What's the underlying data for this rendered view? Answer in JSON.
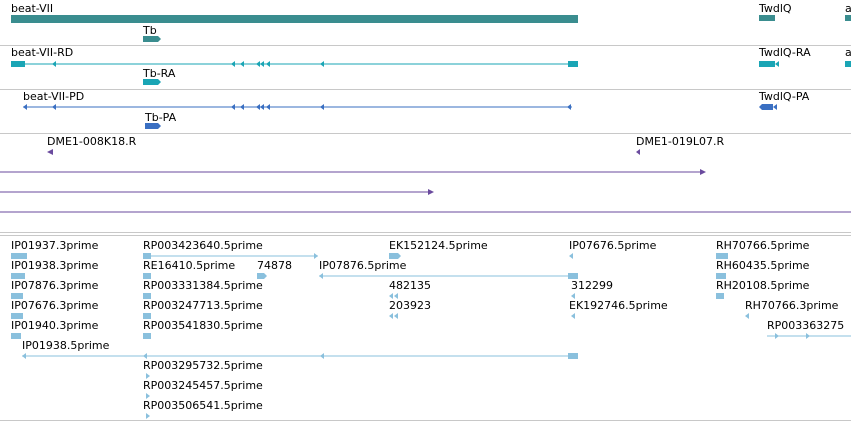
{
  "colors": {
    "gene": "#3a8d8f",
    "rna": "#1aa5b5",
    "protein": "#3a6fc2",
    "clone": "#6a4a9e",
    "est": "#8ac0dd",
    "separator": "#c8c8c8"
  },
  "gene_track": {
    "labels": [
      "beat-VII",
      "Tb",
      "TwdlQ",
      "a"
    ]
  },
  "transcript_track": {
    "labels": [
      "beat-VII-RD",
      "Tb-RA",
      "TwdlQ-RA",
      "a"
    ]
  },
  "protein_track": {
    "labels": [
      "beat-VII-PD",
      "Tb-PA",
      "TwdlQ-PA"
    ]
  },
  "clone_track": {
    "labels": [
      "DME1-008K18.R",
      "DME1-019L07.R"
    ]
  },
  "est_track": {
    "labels": [
      "IP01937.3prime",
      "RP003423640.5prime",
      "EK152124.5prime",
      "IP07676.5prime",
      "RH70766.5prime",
      "IP01938.3prime",
      "RE16410.5prime",
      "74878",
      "IP07876.5prime",
      "RH60435.5prime",
      "IP07876.3prime",
      "RP003331384.5prime",
      "482135",
      "312299",
      "RH20108.5prime",
      "IP07676.3prime",
      "RP003247713.5prime",
      "203923",
      "EK192746.5prime",
      "RH70766.3prime",
      "IP01940.3prime",
      "RP003541830.5prime",
      "RP003363275",
      "IP01938.5prime",
      "RP003295732.5prime",
      "RP003245457.5prime",
      "RP003506541.5prime"
    ]
  }
}
